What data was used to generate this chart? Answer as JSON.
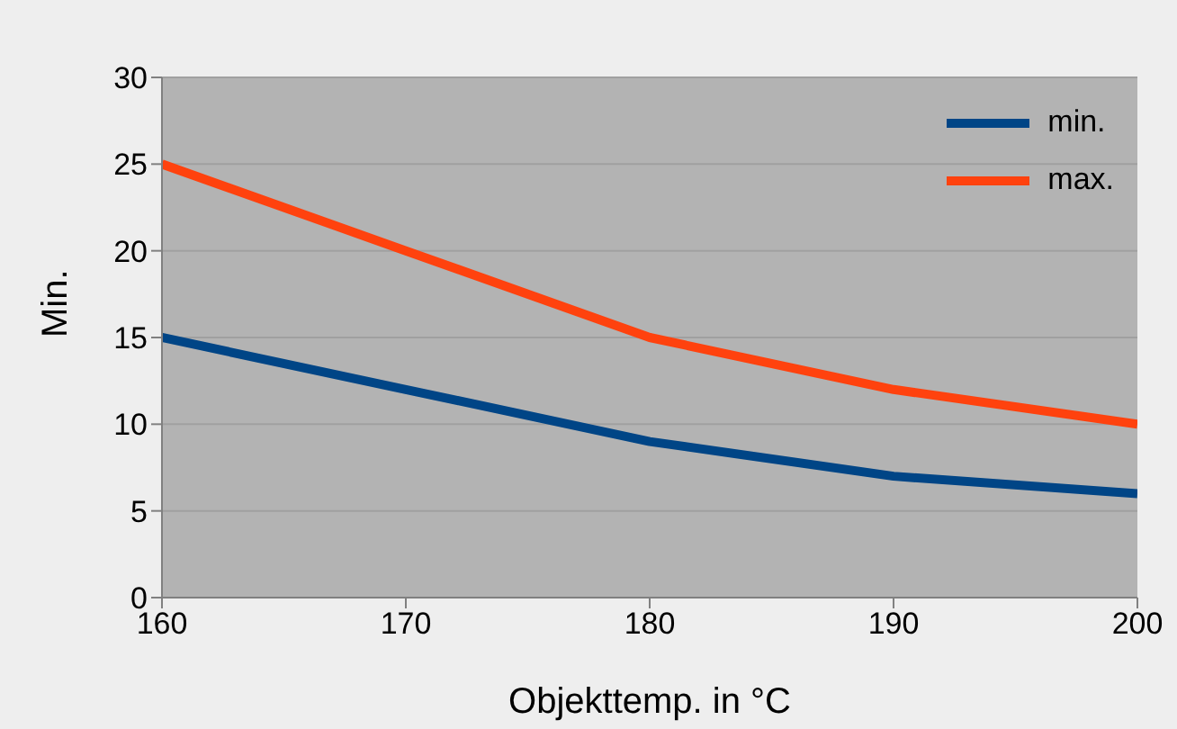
{
  "chart_data": {
    "type": "line",
    "xlabel": "Objekttemp. in °C",
    "ylabel": "Min.",
    "x": [
      160,
      170,
      180,
      190,
      200
    ],
    "series": [
      {
        "name": "min.",
        "color": "#004586",
        "values": [
          15,
          12,
          9,
          7,
          6
        ]
      },
      {
        "name": "max.",
        "color": "#ff420e",
        "values": [
          25,
          20,
          15,
          12,
          10
        ]
      }
    ],
    "xlim": [
      160,
      200
    ],
    "xticks": [
      160,
      170,
      180,
      190,
      200
    ],
    "ylim": [
      0,
      30
    ],
    "yticks": [
      0,
      5,
      10,
      15,
      20,
      25,
      30
    ],
    "grid": "y",
    "legend": "top right",
    "marker": "none",
    "line_style": "solid"
  }
}
